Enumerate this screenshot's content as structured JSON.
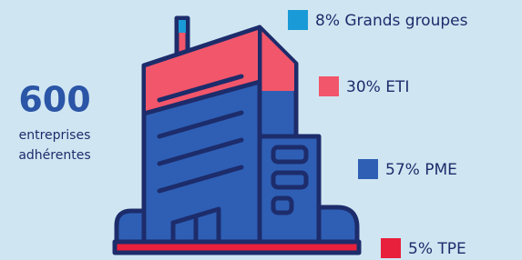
{
  "headline": {
    "number": "600",
    "line1": "entreprises",
    "line2": "adhérentes"
  },
  "legend": [
    {
      "text": "8% Grands groupes",
      "color": "#1a9ad6"
    },
    {
      "text": "30% ETI",
      "color": "#f2566a"
    },
    {
      "text": "57% PME",
      "color": "#2e5fb5"
    },
    {
      "text": "5% TPE",
      "color": "#e8203c"
    }
  ]
}
